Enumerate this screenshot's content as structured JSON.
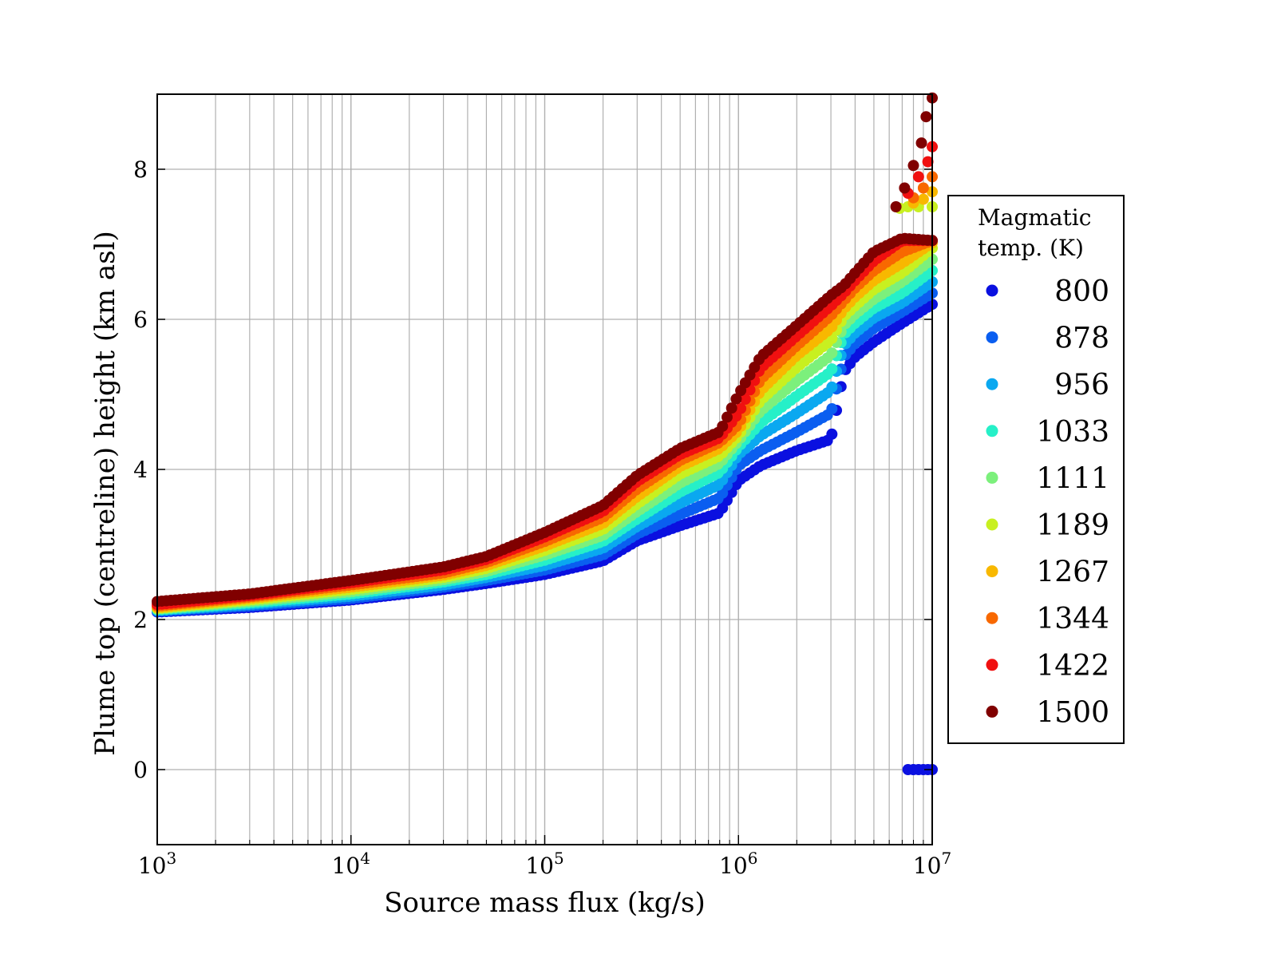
{
  "chart_data": {
    "type": "scatter",
    "xlabel": "Source mass flux (kg/s)",
    "ylabel": "Plume top (centreline) height (km asl)",
    "xscale": "log",
    "xlim": [
      1000,
      10000000
    ],
    "ylim": [
      -1,
      9
    ],
    "x_ticks": [
      {
        "value": 1000,
        "base": "10",
        "exp": "3"
      },
      {
        "value": 10000,
        "base": "10",
        "exp": "4"
      },
      {
        "value": 100000,
        "base": "10",
        "exp": "5"
      },
      {
        "value": 1000000,
        "base": "10",
        "exp": "6"
      },
      {
        "value": 10000000,
        "base": "10",
        "exp": "7"
      }
    ],
    "y_ticks": [
      {
        "value": 0,
        "label": "0"
      },
      {
        "value": 2,
        "label": "2"
      },
      {
        "value": 4,
        "label": "4"
      },
      {
        "value": 6,
        "label": "6"
      },
      {
        "value": 8,
        "label": "8"
      }
    ],
    "grid": true,
    "legend": {
      "title_line1": "Magmatic",
      "title_line2": "temp. (K)",
      "placement": "outside-right"
    },
    "series": [
      {
        "name": "800",
        "color": "#0a10e0",
        "x": [
          1000,
          3000,
          10000,
          30000,
          50000,
          100000,
          200000,
          300000,
          500000,
          800000,
          1000000,
          1300000,
          2000000,
          3000000,
          3500000,
          4000000,
          5000000,
          7000000,
          10000000
        ],
        "y": [
          2.1,
          2.16,
          2.26,
          2.4,
          2.48,
          2.6,
          2.78,
          3.05,
          3.25,
          3.42,
          3.85,
          4.05,
          4.25,
          4.4,
          5.3,
          5.5,
          5.7,
          5.95,
          6.2
        ]
      },
      {
        "name": "878",
        "color": "#0a5ef0",
        "x": [
          1000,
          3000,
          10000,
          30000,
          50000,
          100000,
          200000,
          300000,
          500000,
          800000,
          1000000,
          1300000,
          2000000,
          3000000,
          3500000,
          4000000,
          5000000,
          7000000,
          10000000
        ],
        "y": [
          2.11,
          2.18,
          2.28,
          2.43,
          2.52,
          2.66,
          2.86,
          3.14,
          3.4,
          3.62,
          4.05,
          4.25,
          4.5,
          4.75,
          5.5,
          5.68,
          5.88,
          6.1,
          6.35
        ]
      },
      {
        "name": "956",
        "color": "#0aa8f0",
        "x": [
          1000,
          3000,
          10000,
          30000,
          50000,
          100000,
          200000,
          300000,
          500000,
          800000,
          1000000,
          1300000,
          2000000,
          3000000,
          3500000,
          4000000,
          5000000,
          7000000,
          10000000
        ],
        "y": [
          2.12,
          2.2,
          2.31,
          2.46,
          2.56,
          2.72,
          2.95,
          3.24,
          3.55,
          3.8,
          4.2,
          4.45,
          4.75,
          5.05,
          5.65,
          5.82,
          6.02,
          6.22,
          6.5
        ]
      },
      {
        "name": "1033",
        "color": "#26f0c8",
        "x": [
          1000,
          3000,
          10000,
          30000,
          50000,
          100000,
          200000,
          300000,
          500000,
          800000,
          1000000,
          1300000,
          2000000,
          3000000,
          3500000,
          4000000,
          5000000,
          7000000,
          10000000
        ],
        "y": [
          2.13,
          2.22,
          2.34,
          2.5,
          2.6,
          2.79,
          3.04,
          3.34,
          3.7,
          3.96,
          4.3,
          4.62,
          4.98,
          5.3,
          5.8,
          5.95,
          6.15,
          6.35,
          6.65
        ]
      },
      {
        "name": "1111",
        "color": "#7cf07c",
        "x": [
          1000,
          3000,
          10000,
          30000,
          50000,
          100000,
          200000,
          300000,
          500000,
          800000,
          1000000,
          1300000,
          2000000,
          3000000,
          3500000,
          4000000,
          5000000,
          7000000,
          10000000
        ],
        "y": [
          2.14,
          2.24,
          2.37,
          2.53,
          2.64,
          2.86,
          3.12,
          3.44,
          3.82,
          4.08,
          4.38,
          4.78,
          5.18,
          5.52,
          5.92,
          6.07,
          6.27,
          6.5,
          6.8
        ]
      },
      {
        "name": "1189",
        "color": "#c8f020",
        "x": [
          1000,
          3000,
          10000,
          30000,
          50000,
          100000,
          200000,
          300000,
          500000,
          800000,
          1000000,
          1300000,
          2000000,
          3000000,
          3500000,
          4000000,
          5000000,
          7000000,
          10000000
        ],
        "y": [
          2.15,
          2.26,
          2.4,
          2.56,
          2.68,
          2.92,
          3.2,
          3.54,
          3.94,
          4.18,
          4.45,
          4.92,
          5.36,
          5.72,
          6.04,
          6.18,
          6.4,
          6.62,
          6.95
        ]
      },
      {
        "name": "1267",
        "color": "#f8b800",
        "x": [
          1000,
          3000,
          10000,
          30000,
          50000,
          100000,
          200000,
          300000,
          500000,
          800000,
          1000000,
          1300000,
          2000000,
          3000000,
          3500000,
          4000000,
          5000000,
          7000000,
          10000000
        ],
        "y": [
          2.16,
          2.28,
          2.43,
          2.59,
          2.72,
          2.98,
          3.28,
          3.64,
          4.04,
          4.28,
          4.52,
          5.05,
          5.52,
          5.88,
          6.14,
          6.3,
          6.52,
          6.75,
          7.02
        ]
      },
      {
        "name": "1344",
        "color": "#f86800",
        "x": [
          1000,
          3000,
          10000,
          30000,
          50000,
          100000,
          200000,
          300000,
          500000,
          800000,
          1000000,
          1300000,
          2000000,
          3000000,
          3500000,
          4000000,
          5000000,
          7000000,
          10000000
        ],
        "y": [
          2.18,
          2.3,
          2.46,
          2.62,
          2.76,
          3.04,
          3.36,
          3.74,
          4.12,
          4.36,
          4.6,
          5.2,
          5.65,
          6.05,
          6.25,
          6.42,
          6.65,
          6.9,
          7.05
        ]
      },
      {
        "name": "1422",
        "color": "#f01010",
        "x": [
          1000,
          3000,
          10000,
          30000,
          50000,
          100000,
          200000,
          300000,
          500000,
          800000,
          1000000,
          1300000,
          2000000,
          3000000,
          3500000,
          4000000,
          5000000,
          7000000,
          10000000
        ],
        "y": [
          2.2,
          2.32,
          2.49,
          2.66,
          2.8,
          3.1,
          3.44,
          3.84,
          4.2,
          4.42,
          4.75,
          5.35,
          5.78,
          6.18,
          6.35,
          6.52,
          6.78,
          7.05,
          7.05
        ]
      },
      {
        "name": "1500",
        "color": "#800000",
        "x": [
          1000,
          3000,
          10000,
          30000,
          50000,
          100000,
          200000,
          300000,
          500000,
          800000,
          1000000,
          1300000,
          2000000,
          3000000,
          3500000,
          4000000,
          5000000,
          7000000,
          10000000
        ],
        "y": [
          2.24,
          2.34,
          2.52,
          2.7,
          2.84,
          3.16,
          3.52,
          3.92,
          4.28,
          4.5,
          5.0,
          5.5,
          5.92,
          6.32,
          6.45,
          6.62,
          6.9,
          7.08,
          7.05
        ]
      }
    ],
    "extra_points": [
      {
        "series": "1189",
        "x": [
          6800000,
          7500000,
          8500000,
          10000000
        ],
        "y": [
          7.48,
          7.5,
          7.5,
          7.5
        ]
      },
      {
        "series": "1267",
        "x": [
          8000000,
          9000000,
          10000000
        ],
        "y": [
          7.55,
          7.6,
          7.7
        ]
      },
      {
        "series": "1344",
        "x": [
          8000000,
          9000000,
          10000000
        ],
        "y": [
          7.62,
          7.75,
          7.9
        ]
      },
      {
        "series": "1422",
        "x": [
          7500000,
          8500000,
          9500000,
          10000000
        ],
        "y": [
          7.68,
          7.9,
          8.1,
          8.3
        ]
      },
      {
        "series": "1500",
        "x": [
          6500000,
          7200000,
          8000000,
          8800000,
          9300000,
          10000000
        ],
        "y": [
          7.5,
          7.75,
          8.05,
          8.35,
          8.7,
          8.95
        ]
      },
      {
        "series": "800",
        "x": [
          7500000,
          8000000,
          8500000,
          9000000,
          9500000,
          10000000
        ],
        "y": [
          0.0,
          0.0,
          0.0,
          0.0,
          0.0,
          0.0
        ]
      }
    ]
  }
}
